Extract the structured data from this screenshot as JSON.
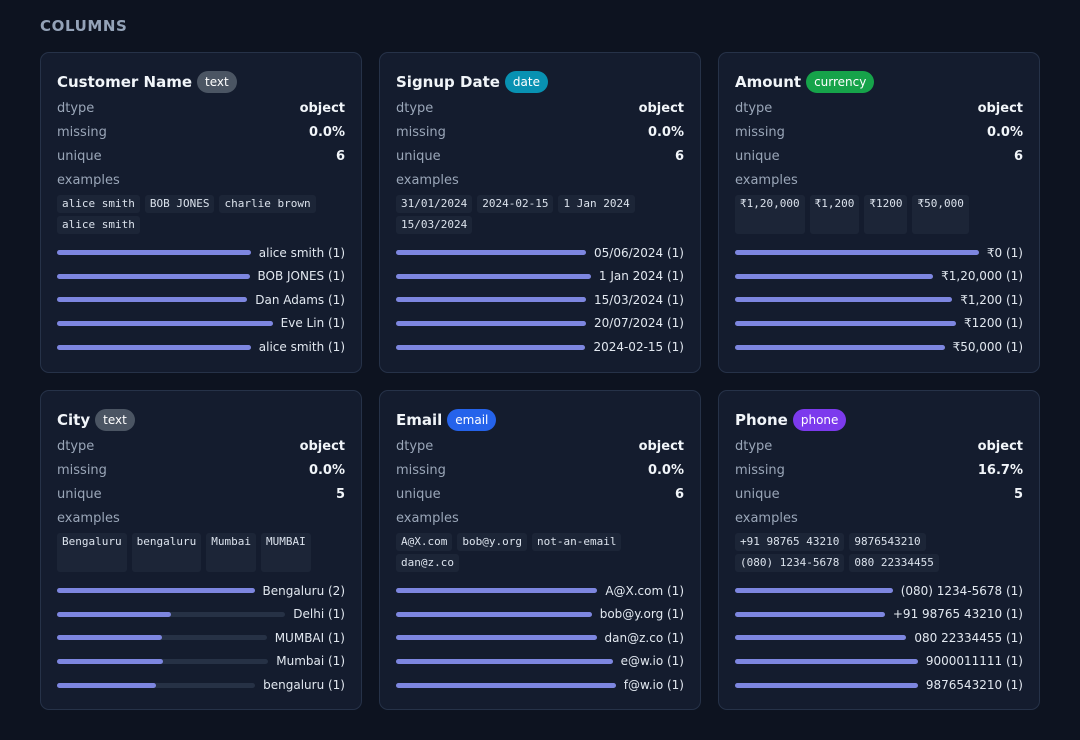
{
  "section_title": "COLUMNS",
  "labels": {
    "dtype": "dtype",
    "missing": "missing",
    "unique": "unique",
    "examples": "examples"
  },
  "cards": [
    {
      "title": "Customer Name",
      "badge": "text",
      "badge_color": "#4b5563",
      "dtype": "object",
      "missing": "0.0%",
      "unique": "6",
      "examples": [
        "alice smith",
        "BOB JONES",
        "charlie brown",
        "alice smith"
      ],
      "values": [
        {
          "label": "alice smith (1)",
          "fraction": 1.0
        },
        {
          "label": "BOB JONES (1)",
          "fraction": 1.0
        },
        {
          "label": "Dan Adams (1)",
          "fraction": 1.0
        },
        {
          "label": "Eve Lin (1)",
          "fraction": 1.0
        },
        {
          "label": "alice smith (1)",
          "fraction": 1.0
        }
      ]
    },
    {
      "title": "Signup Date",
      "badge": "date",
      "badge_color": "#0891b2",
      "dtype": "object",
      "missing": "0.0%",
      "unique": "6",
      "examples": [
        "31/01/2024",
        "2024-02-15",
        "1 Jan 2024",
        "15/03/2024"
      ],
      "values": [
        {
          "label": "05/06/2024 (1)",
          "fraction": 1.0
        },
        {
          "label": "1 Jan 2024 (1)",
          "fraction": 1.0
        },
        {
          "label": "15/03/2024 (1)",
          "fraction": 1.0
        },
        {
          "label": "20/07/2024 (1)",
          "fraction": 1.0
        },
        {
          "label": "2024-02-15 (1)",
          "fraction": 1.0
        }
      ]
    },
    {
      "title": "Amount",
      "badge": "currency",
      "badge_color": "#16a34a",
      "dtype": "object",
      "missing": "0.0%",
      "unique": "6",
      "examples": [
        "₹1,20,000",
        "₹1,200",
        "₹1200",
        "₹50,000"
      ],
      "values": [
        {
          "label": "₹0 (1)",
          "fraction": 1.0
        },
        {
          "label": "₹1,20,000 (1)",
          "fraction": 1.0
        },
        {
          "label": "₹1,200 (1)",
          "fraction": 1.0
        },
        {
          "label": "₹1200 (1)",
          "fraction": 1.0
        },
        {
          "label": "₹50,000 (1)",
          "fraction": 1.0
        }
      ]
    },
    {
      "title": "City",
      "badge": "text",
      "badge_color": "#4b5563",
      "dtype": "object",
      "missing": "0.0%",
      "unique": "5",
      "examples": [
        "Bengaluru",
        "bengaluru",
        "Mumbai",
        "MUMBAI"
      ],
      "values": [
        {
          "label": "Bengaluru (2)",
          "fraction": 1.0
        },
        {
          "label": "Delhi (1)",
          "fraction": 0.5
        },
        {
          "label": "MUMBAI (1)",
          "fraction": 0.5
        },
        {
          "label": "Mumbai (1)",
          "fraction": 0.5
        },
        {
          "label": "bengaluru (1)",
          "fraction": 0.5
        }
      ]
    },
    {
      "title": "Email",
      "badge": "email",
      "badge_color": "#2563eb",
      "dtype": "object",
      "missing": "0.0%",
      "unique": "6",
      "examples": [
        "A@X.com",
        "bob@y.org",
        "not-an-email",
        "dan@z.co"
      ],
      "values": [
        {
          "label": "A@X.com (1)",
          "fraction": 1.0
        },
        {
          "label": "bob@y.org (1)",
          "fraction": 1.0
        },
        {
          "label": "dan@z.co (1)",
          "fraction": 1.0
        },
        {
          "label": "e@w.io (1)",
          "fraction": 1.0
        },
        {
          "label": "f@w.io (1)",
          "fraction": 1.0
        }
      ]
    },
    {
      "title": "Phone",
      "badge": "phone",
      "badge_color": "#7c3aed",
      "dtype": "object",
      "missing": "16.7%",
      "unique": "5",
      "examples": [
        "+91 98765 43210",
        "9876543210",
        "(080) 1234-5678",
        "080 22334455"
      ],
      "values": [
        {
          "label": "(080) 1234-5678 (1)",
          "fraction": 1.0
        },
        {
          "label": "+91 98765 43210 (1)",
          "fraction": 1.0
        },
        {
          "label": "080 22334455 (1)",
          "fraction": 1.0
        },
        {
          "label": "9000011111 (1)",
          "fraction": 1.0
        },
        {
          "label": "9876543210 (1)",
          "fraction": 1.0
        }
      ]
    }
  ]
}
